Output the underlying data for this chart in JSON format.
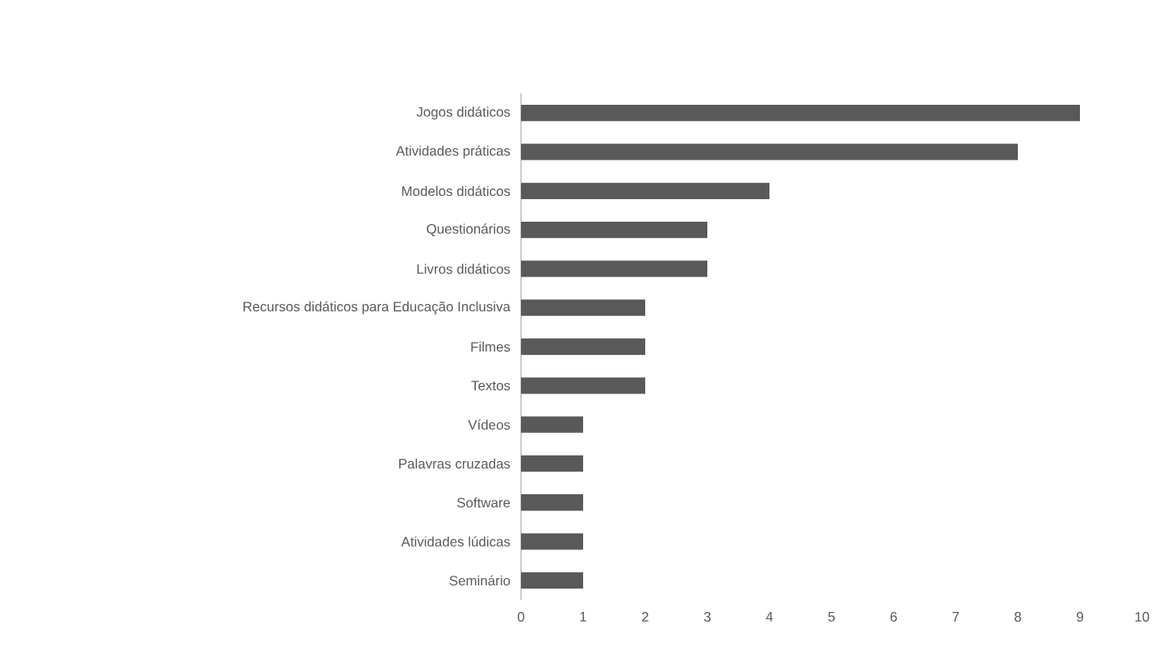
{
  "chart_data": {
    "type": "bar",
    "orientation": "horizontal",
    "categories": [
      "Jogos didáticos",
      "Atividades práticas",
      "Modelos didáticos",
      "Questionários",
      "Livros didáticos",
      "Recursos didáticos para Educação Inclusiva",
      "Filmes",
      "Textos",
      "Vídeos",
      "Palavras cruzadas",
      "Software",
      "Atividades lúdicas",
      "Seminário"
    ],
    "values": [
      9,
      8,
      4,
      3,
      3,
      2,
      2,
      2,
      1,
      1,
      1,
      1,
      1
    ],
    "color": "#595959",
    "xlim": [
      0,
      10
    ],
    "xticks": [
      0,
      1,
      2,
      3,
      4,
      5,
      6,
      7,
      8,
      9,
      10
    ]
  }
}
